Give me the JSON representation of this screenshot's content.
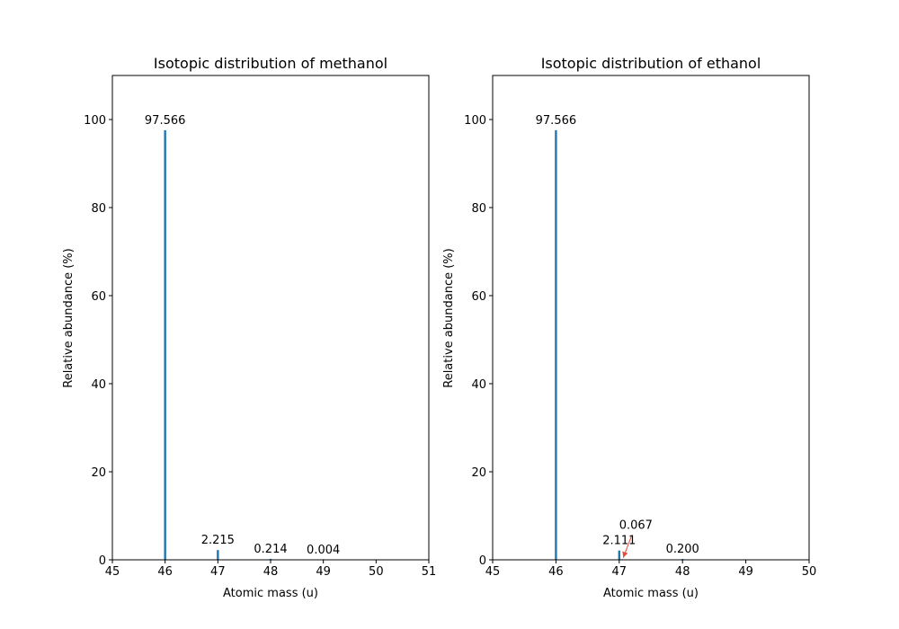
{
  "chart_data": [
    {
      "type": "bar",
      "title": "Isotopic distribution of methanol",
      "xlabel": "Atomic mass (u)",
      "ylabel": "Relative abundance (%)",
      "xlim": [
        45,
        51
      ],
      "ylim": [
        0,
        110
      ],
      "xticks": [
        "45",
        "46",
        "47",
        "48",
        "49",
        "50",
        "51"
      ],
      "yticks": [
        "0",
        "20",
        "40",
        "60",
        "80",
        "100"
      ],
      "grid": false,
      "bar_color": "#1f77b4",
      "points": [
        {
          "x": 46.0,
          "y": 97.566,
          "label": "97.566"
        },
        {
          "x": 47.0,
          "y": 2.215,
          "label": "2.215"
        },
        {
          "x": 48.0,
          "y": 0.214,
          "label": "0.214"
        },
        {
          "x": 49.0,
          "y": 0.004,
          "label": "0.004"
        }
      ]
    },
    {
      "type": "bar",
      "title": "Isotopic distribution of ethanol",
      "xlabel": "Atomic mass (u)",
      "ylabel": "Relative abundance (%)",
      "xlim": [
        45,
        50
      ],
      "ylim": [
        0,
        110
      ],
      "xticks": [
        "45",
        "46",
        "47",
        "48",
        "49",
        "50"
      ],
      "yticks": [
        "0",
        "20",
        "40",
        "60",
        "80",
        "100"
      ],
      "grid": false,
      "bar_color": "#1f77b4",
      "annotation_arrow_color": "#e74c3c",
      "points": [
        {
          "x": 46.0,
          "y": 97.566,
          "label": "97.566"
        },
        {
          "x": 47.0,
          "y": 2.111,
          "label": "2.111"
        },
        {
          "x": 47.05,
          "y": 0.067,
          "label": "0.067",
          "arrow": true
        },
        {
          "x": 48.0,
          "y": 0.2,
          "label": "0.200"
        }
      ]
    }
  ]
}
